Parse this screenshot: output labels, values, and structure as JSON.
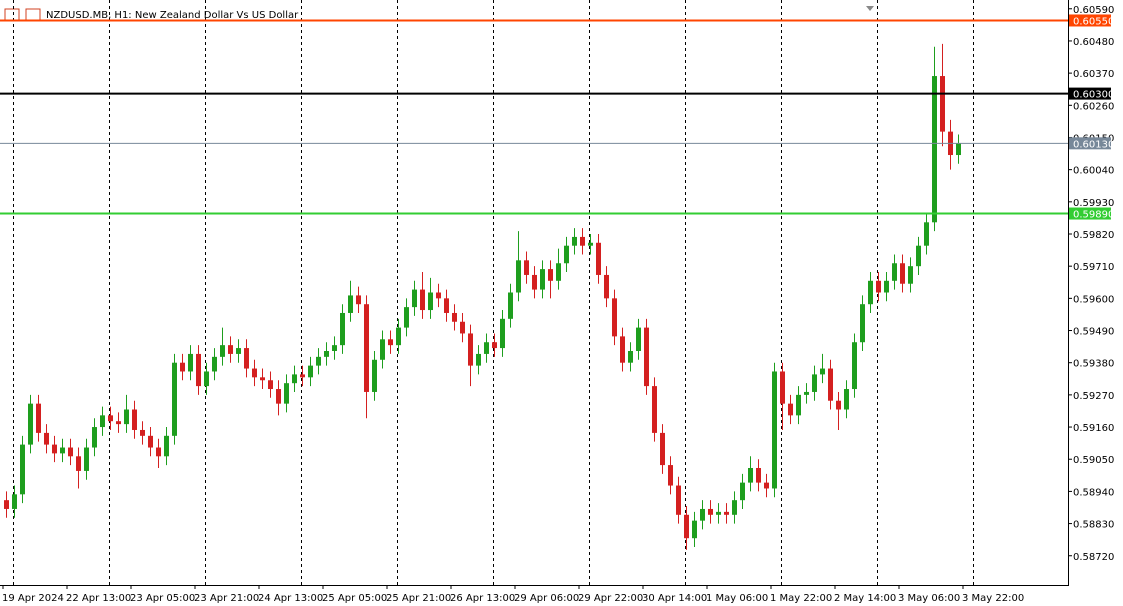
{
  "chart_data": {
    "type": "candlestick",
    "title": "NZDUSD.MB, H1:  New Zealand Dollar Vs US Dollar",
    "ylim": [
      0.5862,
      0.6062
    ],
    "yticks": [
      {
        "value": 0.6059,
        "label": "0.60590"
      },
      {
        "value": 0.6048,
        "label": "0.60480"
      },
      {
        "value": 0.6037,
        "label": "0.60370"
      },
      {
        "value": 0.6026,
        "label": "0.60260"
      },
      {
        "value": 0.6015,
        "label": "0.60150"
      },
      {
        "value": 0.6004,
        "label": "0.60040"
      },
      {
        "value": 0.5993,
        "label": "0.59930"
      },
      {
        "value": 0.5982,
        "label": "0.59820"
      },
      {
        "value": 0.5971,
        "label": "0.59710"
      },
      {
        "value": 0.596,
        "label": "0.59600"
      },
      {
        "value": 0.5949,
        "label": "0.59490"
      },
      {
        "value": 0.5938,
        "label": "0.59380"
      },
      {
        "value": 0.5927,
        "label": "0.59270"
      },
      {
        "value": 0.5916,
        "label": "0.59160"
      },
      {
        "value": 0.5905,
        "label": "0.59050"
      },
      {
        "value": 0.5894,
        "label": "0.58940"
      },
      {
        "value": 0.5883,
        "label": "0.58830"
      },
      {
        "value": 0.5872,
        "label": "0.58720"
      }
    ],
    "x_labels": [
      "19 Apr 2024",
      "22 Apr 13:00",
      "23 Apr 05:00",
      "23 Apr 21:00",
      "24 Apr 13:00",
      "25 Apr 05:00",
      "25 Apr 21:00",
      "26 Apr 13:00",
      "29 Apr 06:00",
      "29 Apr 22:00",
      "30 Apr 14:00",
      "1 May 06:00",
      "1 May 22:00",
      "2 May 14:00",
      "3 May 06:00",
      "3 May 22:00"
    ],
    "levels": [
      {
        "value": 0.6055,
        "label": "0.60550",
        "color": "#ff4500"
      },
      {
        "value": 0.603,
        "label": "0.60300",
        "color": "#000000"
      },
      {
        "value": 0.6013,
        "label": "0.60130",
        "color": "#778899"
      },
      {
        "value": 0.5989,
        "label": "0.59890",
        "color": "#32cd32"
      }
    ],
    "up_color": "#1e9e1e",
    "down_color": "#d42020",
    "open": [
      0.5891,
      0.5888,
      0.5893,
      0.591,
      0.5924,
      0.5914,
      0.591,
      0.5907,
      0.5909,
      0.5906,
      0.5901,
      0.5909,
      0.5916,
      0.592,
      0.5918,
      0.5917,
      0.5922,
      0.5915,
      0.5913,
      0.5909,
      0.5906,
      0.5913,
      0.5938,
      0.5935,
      0.5941,
      0.593,
      0.5935,
      0.594,
      0.5944,
      0.5941,
      0.5943,
      0.5936,
      0.5933,
      0.5932,
      0.5929,
      0.5924,
      0.5931,
      0.5934,
      0.5933,
      0.5937,
      0.594,
      0.5942,
      0.5944,
      0.5955,
      0.5961,
      0.5958,
      0.5928,
      0.5939,
      0.5946,
      0.5944,
      0.595,
      0.5957,
      0.5963,
      0.5956,
      0.5962,
      0.596,
      0.5955,
      0.5952,
      0.5948,
      0.5937,
      0.5941,
      0.5945,
      0.5943,
      0.5953,
      0.5962,
      0.5973,
      0.5968,
      0.5963,
      0.597,
      0.5966,
      0.5972,
      0.5978,
      0.5981,
      0.5978,
      0.5979,
      0.5968,
      0.596,
      0.5947,
      0.5938,
      0.5942,
      0.595,
      0.593,
      0.5914,
      0.5903,
      0.5896,
      0.5886,
      0.5878,
      0.5884,
      0.5888,
      0.5886,
      0.5887,
      0.5886,
      0.5891,
      0.5897,
      0.5902,
      0.5897,
      0.5895,
      0.5935,
      0.5924,
      0.592,
      0.5927,
      0.5928,
      0.5934,
      0.5936,
      0.5925,
      0.5922,
      0.5929,
      0.5945,
      0.5958,
      0.5966,
      0.5962,
      0.5966,
      0.5972,
      0.5965,
      0.5971,
      0.5978,
      0.5986,
      0.6036,
      0.6017,
      0.6009
    ],
    "high": [
      0.5894,
      0.5896,
      0.5913,
      0.5927,
      0.5927,
      0.5917,
      0.5913,
      0.5912,
      0.5912,
      0.5909,
      0.5912,
      0.5919,
      0.5923,
      0.5923,
      0.5921,
      0.5927,
      0.5925,
      0.5918,
      0.5916,
      0.5912,
      0.5916,
      0.5941,
      0.5941,
      0.5944,
      0.5944,
      0.5938,
      0.5943,
      0.595,
      0.5947,
      0.5946,
      0.5946,
      0.5939,
      0.5936,
      0.5935,
      0.5932,
      0.5934,
      0.5937,
      0.5937,
      0.594,
      0.5943,
      0.5945,
      0.5947,
      0.5958,
      0.5966,
      0.5964,
      0.5961,
      0.5942,
      0.5949,
      0.5949,
      0.5953,
      0.596,
      0.5966,
      0.5969,
      0.5967,
      0.5965,
      0.5963,
      0.5958,
      0.5955,
      0.5951,
      0.5944,
      0.5948,
      0.5948,
      0.5956,
      0.5965,
      0.5983,
      0.5976,
      0.5971,
      0.5973,
      0.5973,
      0.5977,
      0.5981,
      0.5984,
      0.5984,
      0.5982,
      0.5982,
      0.5971,
      0.5963,
      0.595,
      0.5945,
      0.5953,
      0.5953,
      0.5933,
      0.5917,
      0.5906,
      0.5899,
      0.5889,
      0.5887,
      0.5891,
      0.5891,
      0.589,
      0.589,
      0.5894,
      0.59,
      0.5906,
      0.5905,
      0.59,
      0.5938,
      0.5938,
      0.5927,
      0.593,
      0.5931,
      0.5937,
      0.5941,
      0.5939,
      0.5928,
      0.5932,
      0.5948,
      0.5961,
      0.5969,
      0.5969,
      0.5969,
      0.5975,
      0.5975,
      0.5974,
      0.5981,
      0.5989,
      0.6046,
      0.6047,
      0.6021,
      0.6016
    ],
    "low": [
      0.5885,
      0.5885,
      0.589,
      0.5907,
      0.5911,
      0.5907,
      0.5904,
      0.5904,
      0.5903,
      0.5895,
      0.5898,
      0.5906,
      0.5913,
      0.5915,
      0.5914,
      0.5914,
      0.5912,
      0.591,
      0.5906,
      0.5902,
      0.5903,
      0.591,
      0.5932,
      0.5932,
      0.5927,
      0.5927,
      0.5932,
      0.5937,
      0.5938,
      0.5938,
      0.5933,
      0.593,
      0.5929,
      0.5926,
      0.592,
      0.5921,
      0.5928,
      0.593,
      0.593,
      0.5934,
      0.5937,
      0.5939,
      0.5941,
      0.5952,
      0.5955,
      0.5919,
      0.5925,
      0.5936,
      0.5941,
      0.5941,
      0.5947,
      0.5954,
      0.5953,
      0.5953,
      0.5957,
      0.5952,
      0.5949,
      0.5945,
      0.593,
      0.5934,
      0.5938,
      0.594,
      0.594,
      0.595,
      0.5959,
      0.5965,
      0.596,
      0.596,
      0.596,
      0.5963,
      0.5969,
      0.5975,
      0.5975,
      0.5975,
      0.5965,
      0.5957,
      0.5944,
      0.5935,
      0.5935,
      0.5939,
      0.5927,
      0.5911,
      0.59,
      0.5893,
      0.5883,
      0.5874,
      0.5875,
      0.5881,
      0.5883,
      0.5883,
      0.5883,
      0.5883,
      0.5888,
      0.5894,
      0.5894,
      0.5892,
      0.5892,
      0.5915,
      0.5917,
      0.5917,
      0.5924,
      0.5925,
      0.5931,
      0.5922,
      0.5915,
      0.5919,
      0.5926,
      0.5942,
      0.5955,
      0.5959,
      0.5959,
      0.5963,
      0.5962,
      0.5962,
      0.5968,
      0.5975,
      0.5983,
      0.6012,
      0.6004,
      0.6006
    ],
    "close": [
      0.5888,
      0.5893,
      0.591,
      0.5924,
      0.5914,
      0.591,
      0.5907,
      0.5909,
      0.5906,
      0.5901,
      0.5909,
      0.5916,
      0.592,
      0.5918,
      0.5917,
      0.5922,
      0.5915,
      0.5913,
      0.5909,
      0.5906,
      0.5913,
      0.5938,
      0.5935,
      0.5941,
      0.593,
      0.5935,
      0.594,
      0.5944,
      0.5941,
      0.5943,
      0.5936,
      0.5933,
      0.5932,
      0.5929,
      0.5924,
      0.5931,
      0.5934,
      0.5933,
      0.5937,
      0.594,
      0.5942,
      0.5944,
      0.5955,
      0.5961,
      0.5958,
      0.5928,
      0.5939,
      0.5946,
      0.5944,
      0.595,
      0.5957,
      0.5963,
      0.5956,
      0.5962,
      0.596,
      0.5955,
      0.5952,
      0.5948,
      0.5937,
      0.5941,
      0.5945,
      0.5943,
      0.5953,
      0.5962,
      0.5973,
      0.5968,
      0.5963,
      0.597,
      0.5966,
      0.5972,
      0.5978,
      0.5981,
      0.5978,
      0.5979,
      0.5968,
      0.596,
      0.5947,
      0.5938,
      0.5942,
      0.595,
      0.593,
      0.5914,
      0.5903,
      0.5896,
      0.5886,
      0.5878,
      0.5884,
      0.5888,
      0.5886,
      0.5887,
      0.5886,
      0.5891,
      0.5897,
      0.5902,
      0.5897,
      0.5895,
      0.5935,
      0.5924,
      0.592,
      0.5927,
      0.5928,
      0.5934,
      0.5936,
      0.5925,
      0.5922,
      0.5929,
      0.5945,
      0.5958,
      0.5966,
      0.5962,
      0.5966,
      0.5972,
      0.5965,
      0.5971,
      0.5978,
      0.5986,
      0.6036,
      0.6017,
      0.6009,
      0.6013
    ]
  }
}
